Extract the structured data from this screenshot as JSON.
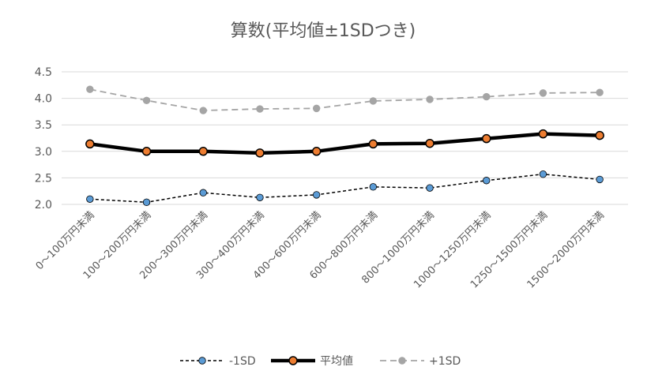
{
  "chart_data": {
    "type": "line",
    "title": "算数(平均値±1SDつき)",
    "xlabel": "",
    "ylabel": "",
    "categories": [
      "0～100万円未満",
      "100～200万円未満",
      "200～300万円未満",
      "300～400万円未満",
      "400～600万円未満",
      "600～800万円未満",
      "800～1000万円未満",
      "1000～1250万円未満",
      "1250～1500万円未満",
      "1500～2000万円未満"
    ],
    "ylim": [
      2.0,
      4.5
    ],
    "yticks": [
      "2.0",
      "2.5",
      "3.0",
      "3.5",
      "4.0",
      "4.5"
    ],
    "grid": true,
    "legend": "bottom",
    "series": [
      {
        "name": "-1SD",
        "values": [
          2.1,
          2.04,
          2.22,
          2.13,
          2.18,
          2.33,
          2.31,
          2.45,
          2.57,
          2.47
        ],
        "line_color": "#000000",
        "marker_color": "#5b9bd5",
        "style": "dashed-thin"
      },
      {
        "name": "平均値",
        "values": [
          3.14,
          3.0,
          3.0,
          2.97,
          3.0,
          3.14,
          3.15,
          3.24,
          3.33,
          3.3
        ],
        "line_color": "#000000",
        "marker_color": "#ed7d31",
        "style": "solid-thick"
      },
      {
        "name": "+1SD",
        "values": [
          4.17,
          3.96,
          3.77,
          3.8,
          3.81,
          3.95,
          3.98,
          4.03,
          4.1,
          4.11
        ],
        "line_color": "#a5a5a5",
        "marker_color": "#a5a5a5",
        "style": "dashed-gray"
      }
    ]
  }
}
